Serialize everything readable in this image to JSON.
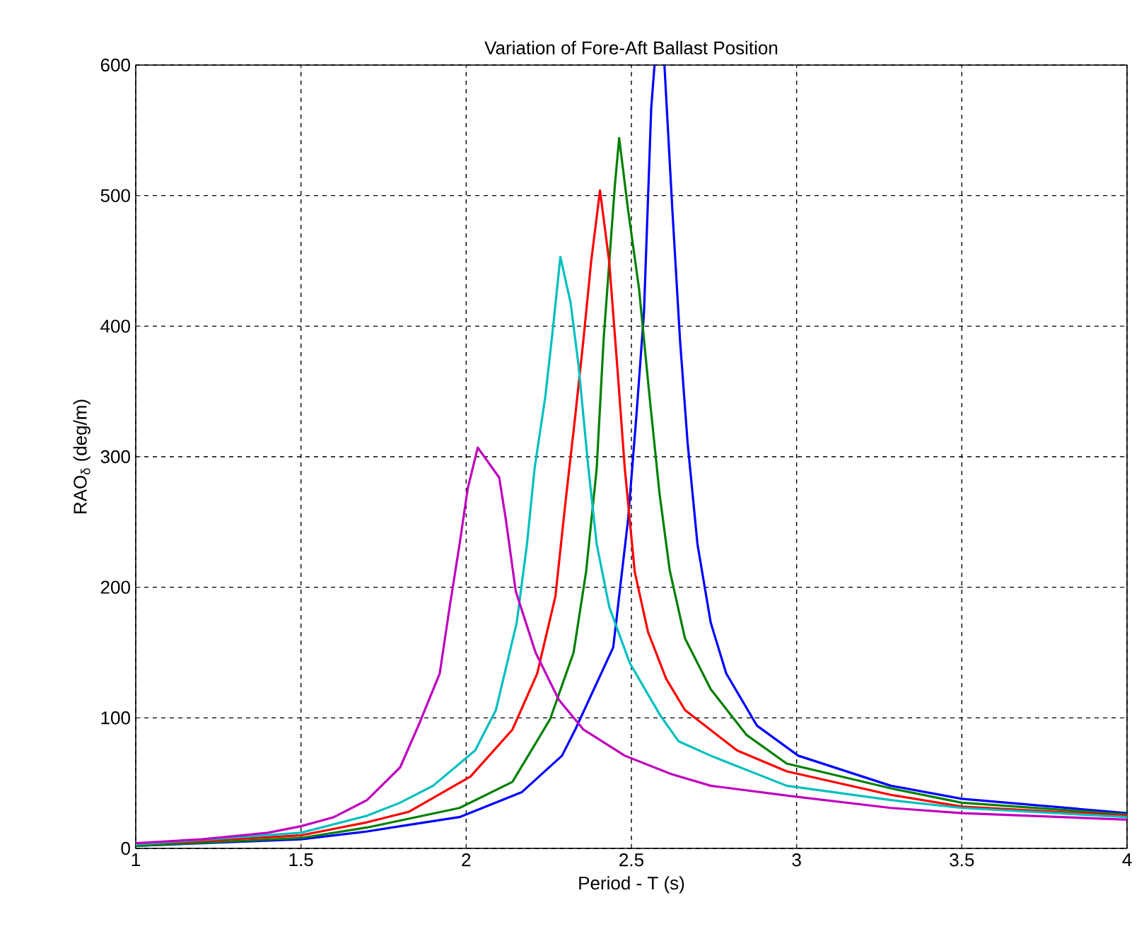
{
  "chart_data": {
    "type": "line",
    "title": "Variation of Fore-Aft Ballast Position",
    "xlabel": "Period - T (s)",
    "ylabel": "RAO$_{δ}$ (deg/m)",
    "xlim": [
      1,
      4
    ],
    "ylim": [
      0,
      600
    ],
    "xticks": [
      1,
      1.5,
      2,
      2.5,
      3,
      3.5,
      4
    ],
    "yticks": [
      0,
      100,
      200,
      300,
      400,
      500,
      600
    ],
    "grid": true,
    "line_style": "solid",
    "marker": "none",
    "series": [
      {
        "color": "#0000ff",
        "x": [
          1.0,
          1.5,
          1.7,
          1.8,
          1.98,
          2.168,
          2.29,
          2.33,
          2.445,
          2.49,
          2.515,
          2.538,
          2.56,
          2.57,
          2.585,
          2.6,
          2.624,
          2.647,
          2.67,
          2.7,
          2.74,
          2.787,
          2.88,
          3.005,
          3.285,
          3.5,
          4.0
        ],
        "values": [
          2,
          7,
          13,
          17,
          24,
          43,
          71,
          91,
          154,
          252,
          331,
          410,
          567,
          600,
          null,
          600,
          489,
          390,
          311,
          233,
          173,
          134,
          94,
          71,
          48,
          38,
          27
        ]
      },
      {
        "color": "#008000",
        "x": [
          1.0,
          1.5,
          1.7,
          1.98,
          2.14,
          2.254,
          2.325,
          2.363,
          2.395,
          2.416,
          2.433,
          2.45,
          2.463,
          2.49,
          2.523,
          2.553,
          2.585,
          2.616,
          2.662,
          2.74,
          2.848,
          2.97,
          3.285,
          3.5,
          4.0
        ],
        "values": [
          2,
          8,
          16,
          31,
          51,
          99,
          150,
          212,
          291,
          390,
          449,
          508,
          544,
          489,
          429,
          351,
          272,
          213,
          161,
          122,
          87,
          65,
          46,
          35,
          26
        ]
      },
      {
        "color": "#ff0000",
        "x": [
          1.0,
          1.5,
          1.7,
          1.826,
          2.013,
          2.14,
          2.215,
          2.27,
          2.3,
          2.33,
          2.355,
          2.378,
          2.405,
          2.433,
          2.457,
          2.48,
          2.51,
          2.55,
          2.605,
          2.662,
          2.82,
          2.97,
          3.285,
          3.5,
          4.0
        ],
        "values": [
          3,
          10,
          20,
          28,
          55,
          91,
          134,
          193,
          264,
          331,
          390,
          449,
          504,
          449,
          370,
          291,
          212,
          166,
          130,
          106,
          75,
          59,
          41,
          32,
          25
        ]
      },
      {
        "color": "#00bfbf",
        "x": [
          1.0,
          1.5,
          1.7,
          1.8,
          1.9,
          2.027,
          2.09,
          2.153,
          2.184,
          2.207,
          2.24,
          2.262,
          2.285,
          2.316,
          2.34,
          2.37,
          2.395,
          2.433,
          2.495,
          2.587,
          2.643,
          2.74,
          2.97,
          3.285,
          3.5,
          4.0
        ],
        "values": [
          3,
          12,
          25,
          35,
          48,
          75,
          106,
          173,
          233,
          291,
          347,
          397,
          453,
          418,
          370,
          291,
          233,
          185,
          142,
          102,
          82,
          71,
          48,
          37,
          31,
          24
        ]
      },
      {
        "color": "#bf00bf",
        "x": [
          1.0,
          1.2,
          1.4,
          1.5,
          1.6,
          1.7,
          1.8,
          1.857,
          1.92,
          1.95,
          1.98,
          2.005,
          2.035,
          2.1,
          2.12,
          2.15,
          2.21,
          2.28,
          2.355,
          2.48,
          2.62,
          2.74,
          2.985,
          3.285,
          3.5,
          4.0
        ],
        "values": [
          4,
          7,
          12,
          17,
          24,
          37,
          62,
          95,
          134,
          185,
          233,
          276,
          307,
          284,
          252,
          197,
          150,
          114,
          91,
          71,
          57,
          48,
          40,
          31,
          27,
          22
        ]
      }
    ]
  }
}
